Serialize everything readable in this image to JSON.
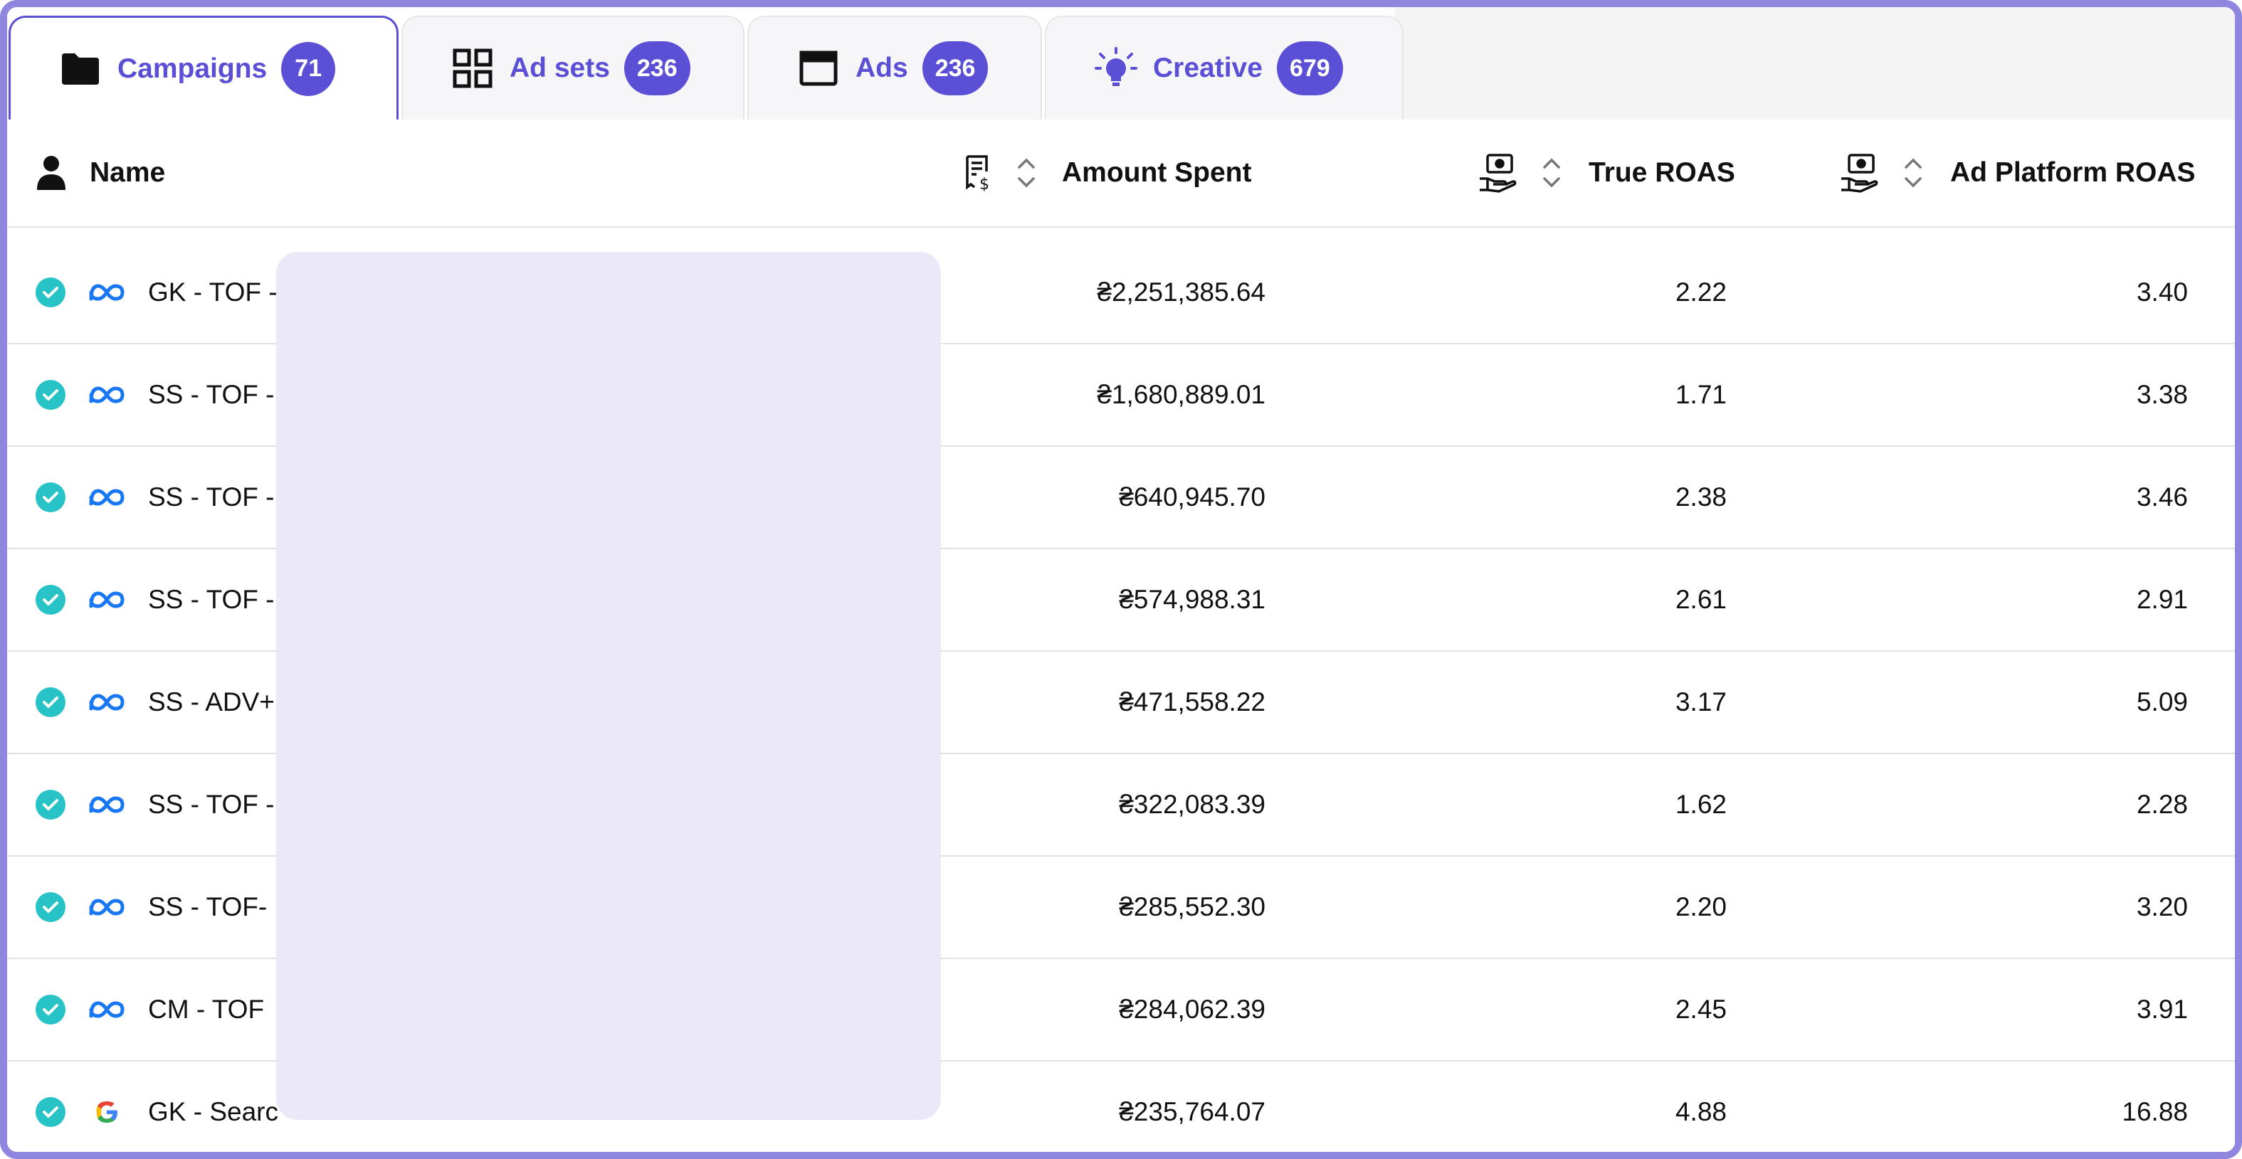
{
  "tabs": [
    {
      "label": "Campaigns",
      "count": "71",
      "icon": "folder-icon",
      "active": true
    },
    {
      "label": "Ad sets",
      "count": "236",
      "icon": "grid-icon",
      "active": false
    },
    {
      "label": "Ads",
      "count": "236",
      "icon": "browser-window-icon",
      "active": false
    },
    {
      "label": "Creative",
      "count": "679",
      "icon": "lightbulb-icon",
      "active": false
    }
  ],
  "columns": {
    "name": "Name",
    "amount_spent": "Amount Spent",
    "true_roas": "True ROAS",
    "ad_platform_roas": "Ad Platform ROAS"
  },
  "rows": [
    {
      "platform": "meta",
      "name": "GK - TOF -",
      "amount_spent": "₴2,251,385.64",
      "true_roas": "2.22",
      "ad_platform_roas": "3.40"
    },
    {
      "platform": "meta",
      "name": "SS - TOF -",
      "amount_spent": "₴1,680,889.01",
      "true_roas": "1.71",
      "ad_platform_roas": "3.38"
    },
    {
      "platform": "meta",
      "name": "SS - TOF -",
      "amount_spent": "₴640,945.70",
      "true_roas": "2.38",
      "ad_platform_roas": "3.46"
    },
    {
      "platform": "meta",
      "name": "SS - TOF -",
      "amount_spent": "₴574,988.31",
      "true_roas": "2.61",
      "ad_platform_roas": "2.91"
    },
    {
      "platform": "meta",
      "name": "SS - ADV+",
      "amount_spent": "₴471,558.22",
      "true_roas": "3.17",
      "ad_platform_roas": "5.09"
    },
    {
      "platform": "meta",
      "name": "SS - TOF -",
      "amount_spent": "₴322,083.39",
      "true_roas": "1.62",
      "ad_platform_roas": "2.28"
    },
    {
      "platform": "meta",
      "name": "SS - TOF-",
      "amount_spent": "₴285,552.30",
      "true_roas": "2.20",
      "ad_platform_roas": "3.20"
    },
    {
      "platform": "meta",
      "name": "CM - TOF",
      "amount_spent": "₴284,062.39",
      "true_roas": "2.45",
      "ad_platform_roas": "3.91"
    },
    {
      "platform": "google",
      "name": "GK - Searc",
      "amount_spent": "₴235,764.07",
      "true_roas": "4.88",
      "ad_platform_roas": "16.88"
    }
  ],
  "colors": {
    "accent": "#5b4fd6",
    "check": "#27c3c6",
    "meta_blue": "#1877f2",
    "redaction": "#ebe9f8"
  }
}
